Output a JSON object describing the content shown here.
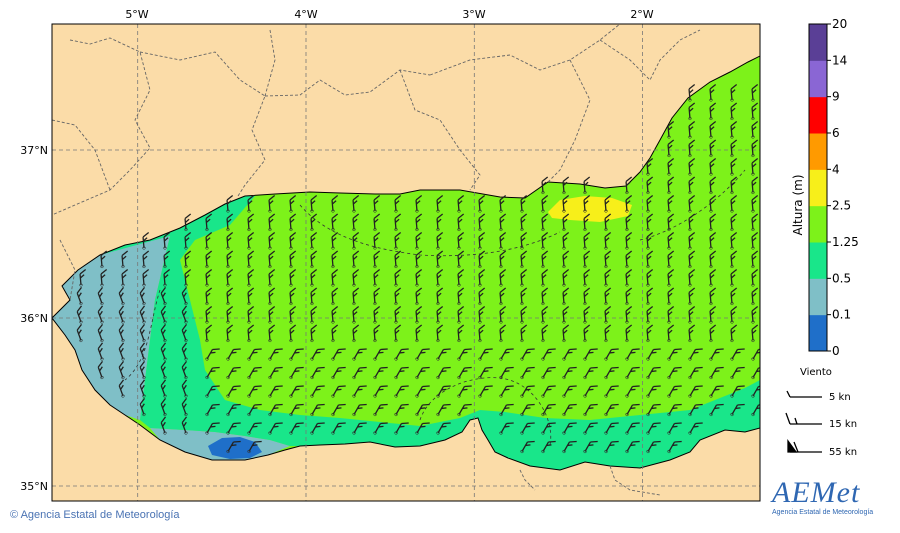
{
  "map": {
    "lon_labels": [
      "5°W",
      "4°W",
      "3°W",
      "2°W"
    ],
    "lat_labels": [
      "37°N",
      "36°N",
      "35°N"
    ],
    "lon_values": [
      -5,
      -4,
      -3,
      -2
    ],
    "lat_values": [
      37,
      36,
      35
    ],
    "wave_direction_deg_from": 230,
    "colors": {
      "land": "#fbdca8",
      "sea_lt_0_1": "#1f6fc9",
      "sea_0_1": "#7fbfc7",
      "sea_0_5": "#19e68a",
      "sea_1_25": "#7df21a",
      "sea_2_5": "#f7ef1a"
    }
  },
  "colorbar": {
    "title": "Altura (m)",
    "levels": [
      "0",
      "0.1",
      "0.5",
      "1.25",
      "2.5",
      "4",
      "6",
      "9",
      "14",
      "20"
    ],
    "colors": [
      "#1f6fc9",
      "#7fbfc7",
      "#19e68a",
      "#7df21a",
      "#f7ef1a",
      "#ff9a00",
      "#ff0000",
      "#8a66d4",
      "#5a3f96"
    ]
  },
  "wind_legend": {
    "title": "Viento",
    "items": [
      "5 kn",
      "15 kn",
      "55 kn"
    ]
  },
  "credit": "Agencia Estatal de Meteorología",
  "logo": {
    "main": "AEMet",
    "sub": "Agencia Estatal de Meteorología"
  }
}
